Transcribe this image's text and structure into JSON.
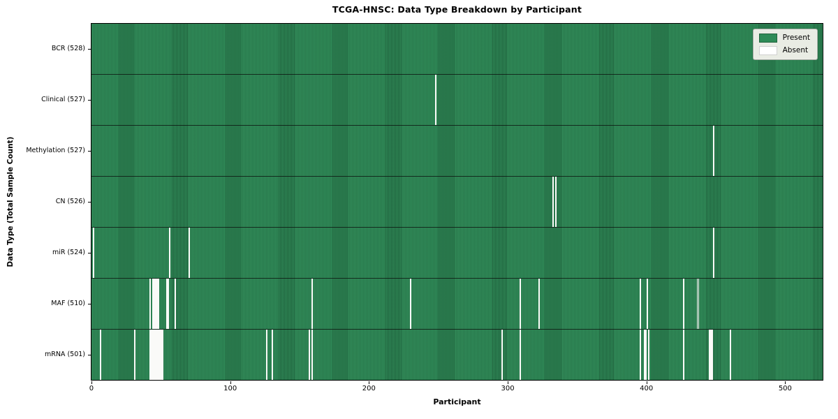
{
  "chart_data": {
    "type": "heatmap",
    "title": "TCGA-HNSC: Data Type Breakdown by Participant",
    "xlabel": "Participant",
    "ylabel": "Data Type (Total Sample Count)",
    "n_participants": 528,
    "xlim": [
      0,
      528
    ],
    "x_ticks": [
      0,
      100,
      200,
      300,
      400,
      500
    ],
    "grid": false,
    "legend_position": "upper right",
    "legend_entries": [
      {
        "label": "Present",
        "color": "#2e8b57"
      },
      {
        "label": "Absent",
        "color": "#ffffff"
      }
    ],
    "colors": {
      "present": "#2e8b57",
      "absent": "#fafaf8",
      "row_separator": "#1a1a1a",
      "legend_background": "#e9ece4"
    },
    "rows": [
      {
        "data_type": "BCR",
        "label": "BCR (528)",
        "total": 528,
        "missing_participants": []
      },
      {
        "data_type": "Clinical",
        "label": "Clinical (527)",
        "total": 527,
        "missing_participants": [
          248
        ]
      },
      {
        "data_type": "Methylation",
        "label": "Methylation (527)",
        "total": 527,
        "missing_participants": [
          449
        ]
      },
      {
        "data_type": "CN",
        "label": "CN (526)",
        "total": 526,
        "missing_participants": [
          333,
          335
        ]
      },
      {
        "data_type": "miR",
        "label": "miR (524)",
        "total": 524,
        "missing_participants": [
          1,
          56,
          70,
          449
        ]
      },
      {
        "data_type": "MAF",
        "label": "MAF (510)",
        "total": 510,
        "missing_participants": [
          42,
          44,
          45,
          46,
          47,
          48,
          54,
          55,
          60,
          159,
          230,
          309,
          323,
          396,
          401,
          427,
          437,
          438
        ]
      },
      {
        "data_type": "mRNA",
        "label": "mRNA (501)",
        "total": 501,
        "missing_participants": [
          6,
          31,
          42,
          43,
          44,
          45,
          46,
          47,
          48,
          49,
          50,
          51,
          126,
          130,
          157,
          159,
          296,
          309,
          396,
          399,
          400,
          402,
          427,
          446,
          447,
          448,
          461
        ]
      }
    ]
  }
}
